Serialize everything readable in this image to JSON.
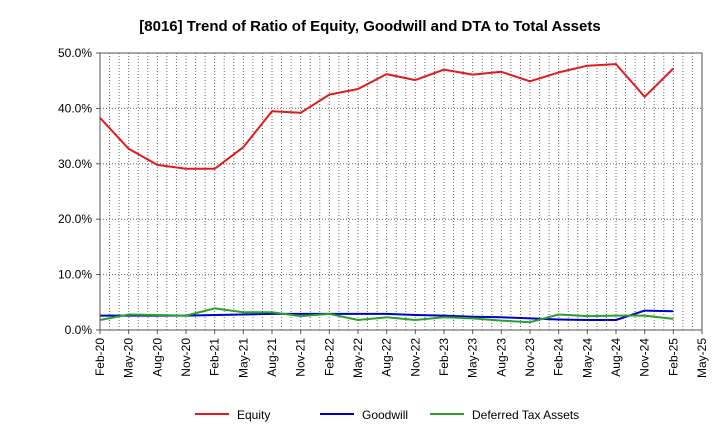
{
  "chart_data": {
    "type": "line",
    "title": "[8016]  Trend of Ratio of Equity, Goodwill and DTA to Total Assets",
    "x": [
      "Feb-20",
      "May-20",
      "Aug-20",
      "Nov-20",
      "Feb-21",
      "May-21",
      "Aug-21",
      "Nov-21",
      "Feb-22",
      "May-22",
      "Aug-22",
      "Nov-22",
      "Feb-23",
      "May-23",
      "Aug-23",
      "Nov-23",
      "Feb-24",
      "May-24",
      "Aug-24",
      "Nov-24",
      "Feb-25"
    ],
    "xticks": [
      "Feb-20",
      "May-20",
      "Aug-20",
      "Nov-20",
      "Feb-21",
      "May-21",
      "Aug-21",
      "Nov-21",
      "Feb-22",
      "May-22",
      "Aug-22",
      "Nov-22",
      "Feb-23",
      "May-23",
      "Aug-23",
      "Nov-23",
      "Feb-24",
      "May-24",
      "Aug-24",
      "Nov-24",
      "Feb-25",
      "May-25"
    ],
    "yticks": [
      "0.0%",
      "10.0%",
      "20.0%",
      "30.0%",
      "40.0%",
      "50.0%"
    ],
    "ylim": [
      0,
      50
    ],
    "grid": true,
    "legend_position": "bottom",
    "series": [
      {
        "name": "Equity",
        "color": "#e31a1c",
        "values": [
          38.3,
          32.7,
          29.8,
          29.1,
          29.1,
          33.0,
          39.5,
          39.2,
          42.5,
          43.5,
          46.2,
          45.1,
          47.0,
          46.1,
          46.6,
          44.9,
          46.5,
          47.7,
          48.0,
          42.1,
          47.2
        ]
      },
      {
        "name": "Goodwill",
        "color": "#0000cc",
        "values": [
          2.6,
          2.6,
          2.6,
          2.6,
          2.7,
          2.8,
          2.9,
          2.9,
          2.9,
          2.9,
          2.9,
          2.7,
          2.6,
          2.4,
          2.3,
          2.1,
          1.9,
          1.8,
          1.8,
          3.5,
          3.4
        ]
      },
      {
        "name": "Deferred Tax Assets",
        "color": "#2ca02c",
        "values": [
          1.8,
          2.8,
          2.7,
          2.6,
          3.9,
          3.2,
          3.2,
          2.5,
          2.9,
          1.8,
          2.3,
          1.8,
          2.3,
          2.1,
          1.7,
          1.4,
          2.8,
          2.5,
          2.6,
          2.6,
          2.0
        ]
      }
    ]
  }
}
